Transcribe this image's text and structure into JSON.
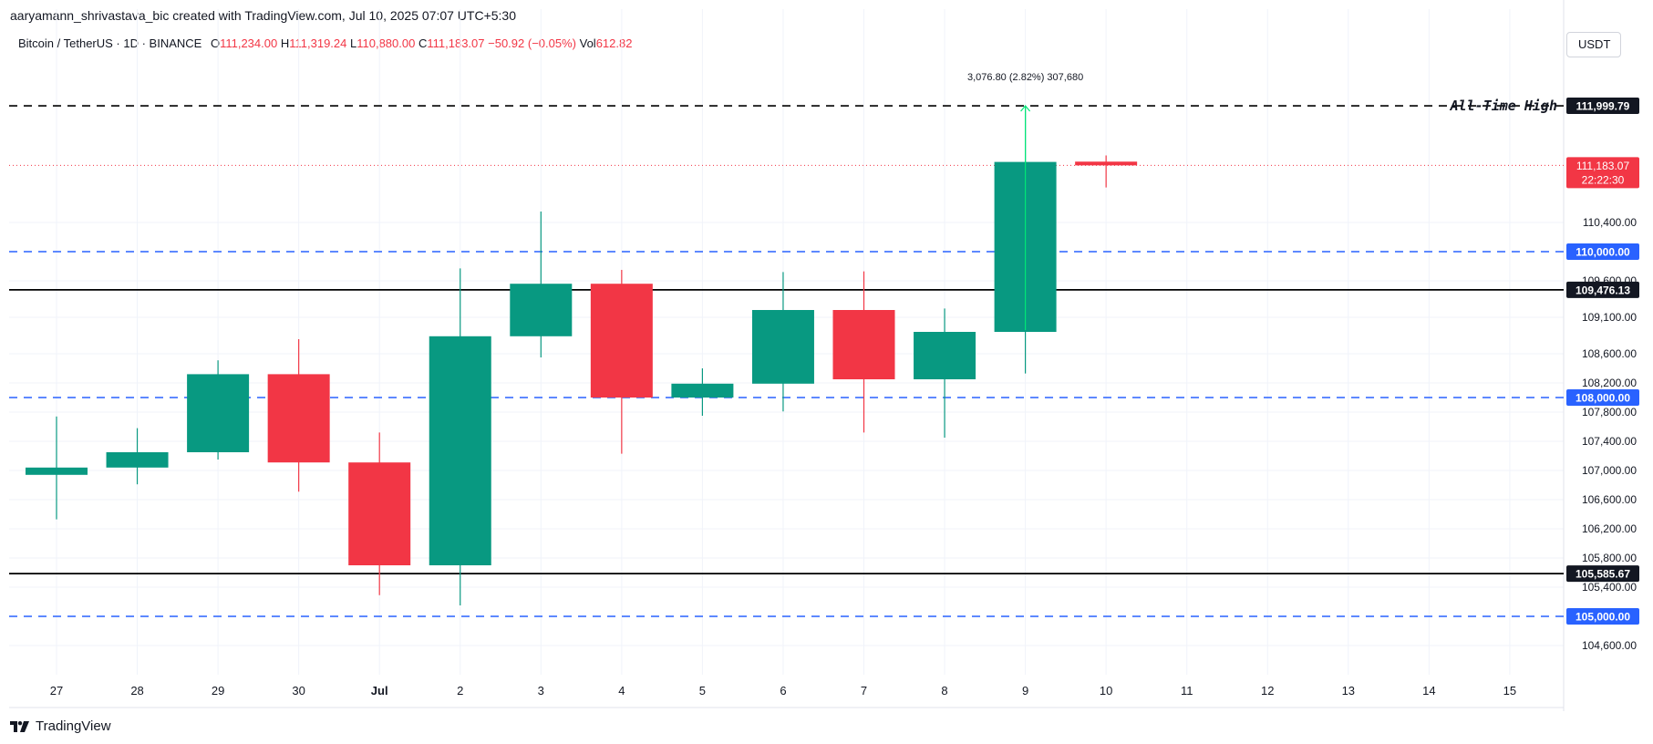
{
  "caption": "aaryamann_shrivastava_bic created with TradingView.com, Jul 10, 2025 07:07 UTC+5:30",
  "legend": {
    "symbol": "Bitcoin / TetherUS · 1D · BINANCE",
    "o_label": "O",
    "o_value": "111,234.00",
    "h_label": "H",
    "h_value": "111,319.24",
    "l_label": "L",
    "l_value": "110,880.00",
    "c_label": "C",
    "c_value": "111,183.07",
    "change": "−50.92 (−0.05%)",
    "vol_label": "Vol",
    "vol_value": "612.82"
  },
  "currency": "USDT",
  "brand": "TradingView",
  "colors": {
    "up": "#089981",
    "down": "#f23645",
    "blue": "#2962ff",
    "black": "#000000",
    "measure": "#00e676",
    "grid": "#f0f3fa"
  },
  "chart_data": {
    "type": "candlestick",
    "ylim": [
      104200,
      112700
    ],
    "x_tick_labels": [
      "27",
      "28",
      "29",
      "30",
      "Jul",
      "2",
      "3",
      "4",
      "5",
      "6",
      "7",
      "8",
      "9",
      "10",
      "11",
      "12",
      "13",
      "14",
      "15"
    ],
    "y_tick_labels": [
      {
        "value": 110400,
        "label": "110,400.00"
      },
      {
        "value": 109600,
        "label": "109,600.00"
      },
      {
        "value": 109100,
        "label": "109,100.00"
      },
      {
        "value": 108600,
        "label": "108,600.00"
      },
      {
        "value": 108200,
        "label": "108,200.00"
      },
      {
        "value": 107800,
        "label": "107,800.00"
      },
      {
        "value": 107400,
        "label": "107,400.00"
      },
      {
        "value": 107000,
        "label": "107,000.00"
      },
      {
        "value": 106600,
        "label": "106,600.00"
      },
      {
        "value": 106200,
        "label": "106,200.00"
      },
      {
        "value": 105800,
        "label": "105,800.00"
      },
      {
        "value": 105400,
        "label": "105,400.00"
      },
      {
        "value": 104600,
        "label": "104,600.00"
      }
    ],
    "candles": [
      {
        "x": "27",
        "o": 106940,
        "h": 107740,
        "l": 106330,
        "c": 107040
      },
      {
        "x": "28",
        "o": 107040,
        "h": 107580,
        "l": 106810,
        "c": 107250
      },
      {
        "x": "29",
        "o": 107250,
        "h": 108510,
        "l": 107150,
        "c": 108320
      },
      {
        "x": "30",
        "o": 108320,
        "h": 108800,
        "l": 106710,
        "c": 107110
      },
      {
        "x": "Jul",
        "o": 107110,
        "h": 107520,
        "l": 105290,
        "c": 105700
      },
      {
        "x": "2",
        "o": 105700,
        "h": 109770,
        "l": 105150,
        "c": 108840
      },
      {
        "x": "3",
        "o": 108840,
        "h": 110550,
        "l": 108550,
        "c": 109560
      },
      {
        "x": "4",
        "o": 109560,
        "h": 109750,
        "l": 107230,
        "c": 108000
      },
      {
        "x": "5",
        "o": 108000,
        "h": 108400,
        "l": 107750,
        "c": 108190
      },
      {
        "x": "6",
        "o": 108190,
        "h": 109720,
        "l": 107810,
        "c": 109200
      },
      {
        "x": "7",
        "o": 109200,
        "h": 109730,
        "l": 107520,
        "c": 108250
      },
      {
        "x": "8",
        "o": 108250,
        "h": 109220,
        "l": 107450,
        "c": 108900
      },
      {
        "x": "9",
        "o": 108900,
        "h": 111999,
        "l": 108330,
        "c": 111230
      },
      {
        "x": "10",
        "o": 111234,
        "h": 111319,
        "l": 110880,
        "c": 111183
      }
    ],
    "horizontal_lines": [
      {
        "value": 111999.79,
        "label": "111,999.79",
        "style": "dashed",
        "color": "#000000",
        "annotation": "All-Time High"
      },
      {
        "value": 110000,
        "label": "110,000.00",
        "style": "dashed",
        "color": "#2962ff"
      },
      {
        "value": 109476.13,
        "label": "109,476.13",
        "style": "solid",
        "color": "#000000"
      },
      {
        "value": 108000,
        "label": "108,000.00",
        "style": "dashed",
        "color": "#2962ff"
      },
      {
        "value": 105585.67,
        "label": "105,585.67",
        "style": "solid",
        "color": "#000000"
      },
      {
        "value": 105000,
        "label": "105,000.00",
        "style": "dashed",
        "color": "#2962ff"
      }
    ],
    "last_price": {
      "value": 111183.07,
      "label": "111,183.07",
      "countdown": "22:22:30"
    },
    "measurement": {
      "from": 108923,
      "to": 111999.79,
      "at": "9",
      "label": "3,076.80 (2.82%) 307,680"
    }
  }
}
